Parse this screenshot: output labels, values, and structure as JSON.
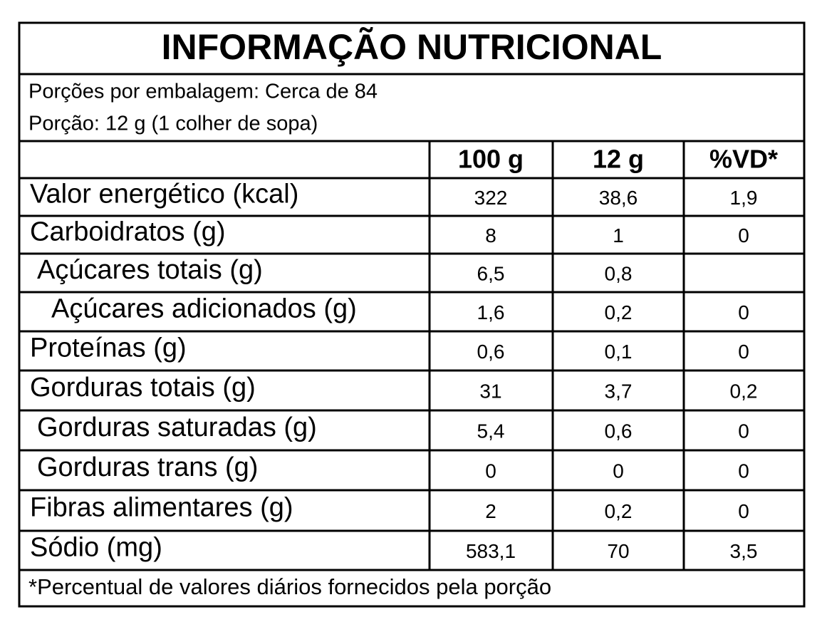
{
  "title": "INFORMAÇÃO NUTRICIONAL",
  "serving": [
    "Porções por embalagem: Cerca de 84",
    "Porção: 12 g (1 colher de sopa)"
  ],
  "table": {
    "header": [
      "100 g",
      "12 g",
      "%VD*"
    ],
    "rows": [
      [
        "Valor energético (kcal)",
        "322",
        "38,6",
        "1,9"
      ],
      [
        "Carboidratos (g)",
        "8",
        "1",
        "0"
      ],
      [
        "Açúcares totais (g)",
        "6,5",
        "0,8",
        null
      ],
      [
        "Açúcares adicionados (g)",
        "1,6",
        "0,2",
        "0"
      ],
      [
        "Proteínas (g)",
        "0,6",
        "0,1",
        "0"
      ],
      [
        "Gorduras totais (g)",
        "31",
        "3,7",
        "0,2"
      ],
      [
        "Gorduras saturadas (g)",
        "5,4",
        "0,6",
        "0"
      ],
      [
        "Gorduras trans (g)",
        "0",
        "0",
        "0"
      ],
      [
        "Fibras alimentares (g)",
        "2",
        "0,2",
        "0"
      ],
      [
        "Sódio (mg)",
        "583,1",
        "70",
        "3,5"
      ]
    ]
  },
  "footnote": "*Percentual de valores diários fornecidos pela porção"
}
